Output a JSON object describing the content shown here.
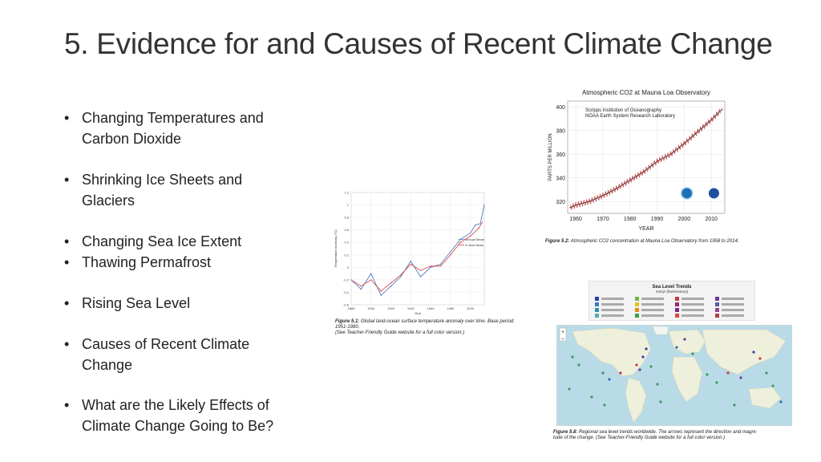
{
  "slide": {
    "title": "5. Evidence for and Causes of Recent Climate Change"
  },
  "bullets": [
    {
      "lines": [
        "Changing Temperatures and",
        "Carbon Dioxide"
      ]
    },
    {
      "lines": [
        "Shrinking Ice Sheets and",
        "Glaciers"
      ]
    },
    {
      "lines": [
        "Changing Sea Ice Extent"
      ]
    },
    {
      "lines": [
        "Thawing Permafrost"
      ]
    },
    {
      "lines": [
        "Rising Sea Level"
      ]
    },
    {
      "lines": [
        "Causes of Recent Climate",
        "Change"
      ]
    },
    {
      "lines": [
        "What are the Likely Effects of",
        "Climate Change Going to Be?"
      ]
    }
  ],
  "bullet_glyph": "•",
  "figures": {
    "temp": {
      "caption_label": "Figure 5.1:",
      "caption_text": " Global land-ocean surface temperature anomaly over time. Base period: 1951-1980.",
      "caption_text2": "(See Teacher-Friendly Guide website for a full color version.)"
    },
    "co2": {
      "caption_label": "Figure 5.2:",
      "caption_text": " Atmospheric CO2 concentration at Mauna Loa Observatory from 1958 to 2014."
    },
    "sea": {
      "caption_label": "Figure 5.8:",
      "caption_text": " Regional sea level trends worldwide.  The arrows represent the direction and magni-",
      "caption_text2": "tude of the change. (See Teacher-Friendly Guide website for a full color version.)",
      "legend_title": "Sea Level Trends",
      "legend_unit": "mm/yr (feet/century)"
    }
  },
  "chart_data": [
    {
      "type": "line",
      "title": "Atmospheric CO2 at Mauna Loa Observatory",
      "subtitle": [
        "Scripps Institution of Oceanography",
        "NOAA Earth System Research Laboratory"
      ],
      "xlabel": "YEAR",
      "ylabel": "PARTS PER MILLION",
      "xlim": [
        1957,
        2015
      ],
      "ylim": [
        310,
        405
      ],
      "xticks": [
        1960,
        1970,
        1980,
        1990,
        2000,
        2010
      ],
      "yticks": [
        320,
        340,
        360,
        380,
        400
      ],
      "series": [
        {
          "color": "#c62828",
          "x": [
            1958,
            1960,
            1965,
            1970,
            1975,
            1980,
            1985,
            1990,
            1995,
            2000,
            2005,
            2010,
            2014
          ],
          "values": [
            315,
            317,
            320,
            325,
            331,
            338,
            345,
            354,
            360,
            369,
            379,
            389,
            398
          ]
        }
      ],
      "grid": true
    },
    {
      "type": "line",
      "title": "",
      "xlabel": "Year",
      "ylabel": "Temperature Anomaly (°C)",
      "xlim": [
        1880,
        2014
      ],
      "ylim": [
        -0.6,
        1.2
      ],
      "xticks": [
        1880,
        1900,
        1920,
        1940,
        1960,
        1980,
        2000
      ],
      "yticks": [
        -0.6,
        -0.4,
        -0.2,
        0,
        0.2,
        0.4,
        0.6,
        0.8,
        1,
        1.2
      ],
      "series": [
        {
          "name": "Annual Mean",
          "color": "#4a7fc1",
          "x": [
            1880,
            1890,
            1900,
            1910,
            1920,
            1930,
            1940,
            1950,
            1960,
            1970,
            1980,
            1990,
            2000,
            2005,
            2010,
            2014
          ],
          "values": [
            -0.2,
            -0.35,
            -0.1,
            -0.45,
            -0.3,
            -0.15,
            0.1,
            -0.15,
            0.0,
            0.05,
            0.25,
            0.45,
            0.55,
            0.68,
            0.7,
            1.0
          ]
        },
        {
          "name": "5-Year Mean",
          "color": "#d23c3c",
          "x": [
            1882,
            1890,
            1900,
            1910,
            1920,
            1930,
            1940,
            1950,
            1960,
            1970,
            1980,
            1990,
            2000,
            2008,
            2012
          ],
          "values": [
            -0.22,
            -0.3,
            -0.2,
            -0.38,
            -0.25,
            -0.12,
            0.05,
            -0.05,
            0.02,
            0.02,
            0.2,
            0.4,
            0.5,
            0.62,
            0.72
          ]
        }
      ],
      "grid": true
    }
  ]
}
